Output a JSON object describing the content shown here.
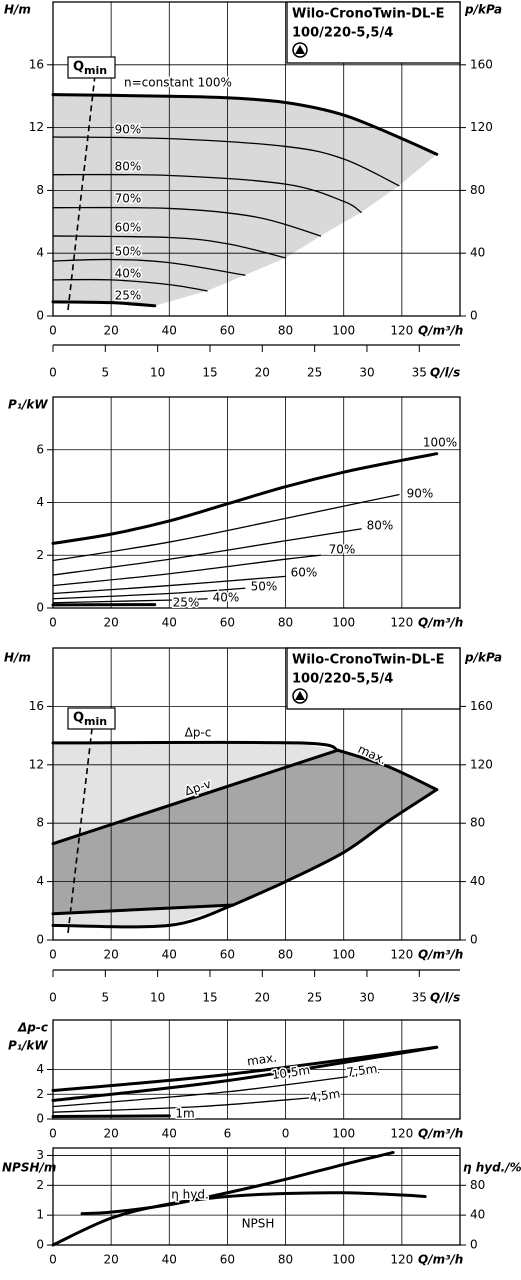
{
  "chart_data": [
    {
      "type": "line",
      "title": "Wilo-CronoTwin-DL-E",
      "subtitle": "100/220-5,5/4",
      "ylabel": "H/m",
      "y2label": "p/kPa",
      "xlabel": "Q/m³/h",
      "x2label": "Q/l/s",
      "annotation": {
        "text": "Q",
        "sub": "min"
      },
      "xlim": [
        0,
        140
      ],
      "xticks": [
        0,
        20,
        40,
        60,
        80,
        100,
        120
      ],
      "x2lim": [
        0,
        38.89
      ],
      "x2ticks": [
        0,
        5,
        10,
        15,
        20,
        25,
        30,
        35
      ],
      "ylim": [
        0,
        20
      ],
      "yticks": [
        0,
        4,
        8,
        12,
        16
      ],
      "y2lim": [
        0,
        200
      ],
      "y2ticks": [
        0,
        40,
        80,
        120,
        160
      ],
      "grid": true,
      "fill": "#d9d9d9",
      "series": [
        {
          "name": "n=constant 100%",
          "style": "bold",
          "x": [
            0,
            40,
            60,
            80,
            100,
            120,
            132
          ],
          "values": [
            14.1,
            14.0,
            13.9,
            13.6,
            12.8,
            11.3,
            10.3
          ]
        },
        {
          "name": "90%",
          "style": "thin",
          "x": [
            0,
            40,
            80,
            100,
            119
          ],
          "values": [
            11.4,
            11.3,
            10.8,
            10.0,
            8.3
          ]
        },
        {
          "name": "80%",
          "style": "thin",
          "x": [
            0,
            40,
            80,
            100,
            106
          ],
          "values": [
            9.0,
            8.95,
            8.4,
            7.3,
            6.6
          ]
        },
        {
          "name": "70%",
          "style": "thin",
          "x": [
            0,
            40,
            70,
            92
          ],
          "values": [
            6.9,
            6.85,
            6.3,
            5.1
          ]
        },
        {
          "name": "60%",
          "style": "thin",
          "x": [
            0,
            40,
            60,
            80
          ],
          "values": [
            5.1,
            5.0,
            4.6,
            3.7
          ]
        },
        {
          "name": "50%",
          "style": "thin",
          "x": [
            0,
            20,
            40,
            66
          ],
          "values": [
            3.5,
            3.6,
            3.4,
            2.6
          ]
        },
        {
          "name": "40%",
          "style": "thin",
          "x": [
            0,
            20,
            40,
            53
          ],
          "values": [
            2.3,
            2.3,
            2.0,
            1.6
          ]
        },
        {
          "name": "25%",
          "style": "bold",
          "x": [
            0,
            20,
            35
          ],
          "values": [
            0.9,
            0.85,
            0.65
          ]
        }
      ]
    },
    {
      "type": "line",
      "ylabel": "P₁/kW",
      "xlabel": "Q/m³/h",
      "xlim": [
        0,
        140
      ],
      "xticks": [
        0,
        20,
        40,
        60,
        80,
        100,
        120
      ],
      "ylim": [
        0,
        8
      ],
      "yticks": [
        0,
        2,
        4,
        6
      ],
      "grid": true,
      "series": [
        {
          "name": "100%",
          "style": "bold",
          "x": [
            0,
            20,
            40,
            60,
            80,
            100,
            120,
            132
          ],
          "values": [
            2.45,
            2.8,
            3.3,
            3.95,
            4.6,
            5.15,
            5.6,
            5.85
          ]
        },
        {
          "name": "90%",
          "style": "thin",
          "x": [
            0,
            40,
            80,
            119
          ],
          "values": [
            1.8,
            2.5,
            3.4,
            4.3
          ]
        },
        {
          "name": "80%",
          "style": "thin",
          "x": [
            0,
            40,
            80,
            106
          ],
          "values": [
            1.25,
            1.85,
            2.55,
            3.0
          ]
        },
        {
          "name": "70%",
          "style": "thin",
          "x": [
            0,
            40,
            80,
            92
          ],
          "values": [
            0.85,
            1.3,
            1.85,
            2.0
          ]
        },
        {
          "name": "60%",
          "style": "thin",
          "x": [
            0,
            40,
            80
          ],
          "values": [
            0.55,
            0.85,
            1.2
          ]
        },
        {
          "name": "50%",
          "style": "thin",
          "x": [
            0,
            40,
            66
          ],
          "values": [
            0.35,
            0.55,
            0.75
          ]
        },
        {
          "name": "40%",
          "style": "thin",
          "x": [
            0,
            40,
            53
          ],
          "values": [
            0.2,
            0.3,
            0.35
          ]
        },
        {
          "name": "25%",
          "style": "bold",
          "x": [
            0,
            35
          ],
          "values": [
            0.12,
            0.13
          ]
        }
      ]
    },
    {
      "type": "line",
      "title": "Wilo-CronoTwin-DL-E",
      "subtitle": "100/220-5,5/4",
      "ylabel": "H/m",
      "y2label": "p/kPa",
      "xlabel": "Q/m³/h",
      "x2label": "Q/l/s",
      "annotation": {
        "text": "Q",
        "sub": "min"
      },
      "xlim": [
        0,
        140
      ],
      "xticks": [
        0,
        20,
        40,
        60,
        80,
        100,
        120
      ],
      "x2lim": [
        0,
        38.89
      ],
      "x2ticks": [
        0,
        5,
        10,
        15,
        20,
        25,
        30,
        35
      ],
      "ylim": [
        0,
        20
      ],
      "yticks": [
        0,
        4,
        8,
        12,
        16
      ],
      "y2lim": [
        0,
        200
      ],
      "y2ticks": [
        0,
        40,
        80,
        120,
        160
      ],
      "grid": true,
      "fill": "#e3e3e3",
      "fill2": "#a6a6a6",
      "series": [
        {
          "name": "Δp-c",
          "style": "bold",
          "x": [
            0,
            84,
            98
          ],
          "values": [
            13.5,
            13.5,
            13.0
          ]
        },
        {
          "name": "max.",
          "style": "bold",
          "x": [
            98,
            115,
            132
          ],
          "values": [
            13.0,
            11.9,
            10.3
          ]
        },
        {
          "name": "Δp-v",
          "style": "bold",
          "x": [
            0,
            98
          ],
          "values": [
            6.6,
            13.0
          ]
        },
        {
          "style": "bold",
          "x": [
            132,
            115,
            100,
            80,
            62
          ],
          "values": [
            10.3,
            8.1,
            6.0,
            4.0,
            2.4
          ]
        },
        {
          "style": "bold",
          "x": [
            62,
            0
          ],
          "values": [
            2.4,
            1.8
          ]
        },
        {
          "style": "bold",
          "x": [
            62,
            40,
            0
          ],
          "values": [
            2.4,
            1.0,
            1.0
          ]
        }
      ]
    },
    {
      "type": "line",
      "ylabel": [
        "Δp-c",
        "P₁/kW"
      ],
      "xlabel": "Q/m³/h",
      "xlim": [
        0,
        140
      ],
      "xticks": [
        0,
        20,
        40,
        {
          "value": 60,
          "label": "6"
        },
        {
          "value": 80,
          "label": "0"
        },
        100,
        120
      ],
      "ylim": [
        0,
        8
      ],
      "yticks": [
        0,
        2,
        4
      ],
      "grid": true,
      "series": [
        {
          "name": "max.",
          "style": "bold",
          "x": [
            0,
            60,
            132
          ],
          "values": [
            2.3,
            3.6,
            5.8
          ]
        },
        {
          "name": "10,5m",
          "style": "bold",
          "x": [
            0,
            60,
            132
          ],
          "values": [
            1.5,
            3.1,
            5.8
          ]
        },
        {
          "name": "7,5m",
          "style": "thin",
          "x": [
            0,
            60,
            112
          ],
          "values": [
            1.0,
            2.2,
            3.75
          ]
        },
        {
          "name": "4,5m",
          "style": "thin",
          "x": [
            0,
            50,
            88
          ],
          "values": [
            0.55,
            1.0,
            1.7
          ]
        },
        {
          "name": "1m",
          "style": "bold",
          "x": [
            0,
            40
          ],
          "values": [
            0.2,
            0.25
          ]
        }
      ]
    },
    {
      "type": "line",
      "ylabel": "NPSH/m",
      "y2label": "η hyd./%",
      "xlabel": "Q/m³/h",
      "xlim": [
        0,
        140
      ],
      "xticks": [
        0,
        20,
        40,
        60,
        80,
        100,
        120
      ],
      "ylim": [
        0,
        3.25
      ],
      "yticks": [
        0,
        1,
        2,
        3
      ],
      "y2lim": [
        0,
        130
      ],
      "y2ticks": [
        0,
        40,
        80
      ],
      "grid": true,
      "series": [
        {
          "name": "η hyd.",
          "style": "bold",
          "axis": "y2",
          "x": [
            0,
            20,
            40,
            60,
            80,
            100,
            120,
            128
          ],
          "values": [
            0,
            36,
            55,
            65,
            69,
            70,
            67,
            65
          ]
        },
        {
          "name": "NPSH",
          "style": "bold",
          "x": [
            10,
            20,
            40,
            60,
            80,
            100,
            117
          ],
          "values": [
            1.05,
            1.1,
            1.35,
            1.75,
            2.2,
            2.7,
            3.1
          ]
        }
      ]
    }
  ]
}
